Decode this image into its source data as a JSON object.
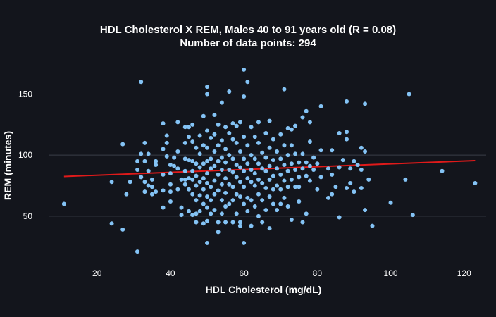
{
  "chart_data": {
    "type": "scatter",
    "title": "HDL Cholesterol X REM, Males 40 to 91 years old (R = 0.08)",
    "subtitle": "Number of data points: 294",
    "xlabel": "HDL Cholesterol (mg/dL)",
    "ylabel": "REM (minutes)",
    "xlim": [
      7,
      126
    ],
    "ylim": [
      17,
      178
    ],
    "xticks": [
      20,
      40,
      60,
      80,
      100,
      120
    ],
    "yticks": [
      50,
      100,
      150
    ],
    "grid": {
      "x": false,
      "y": true
    },
    "colors": {
      "background": "#13151c",
      "points": "#84c3f5",
      "trend": "#e01a1a",
      "grid": "#3a3d47",
      "text": "#ffffff"
    },
    "trendline": {
      "x": [
        11,
        123
      ],
      "y": [
        82.5,
        95.5
      ]
    },
    "series": [
      {
        "points": [
          [
            11,
            60
          ],
          [
            24,
            78
          ],
          [
            24,
            44
          ],
          [
            27,
            109
          ],
          [
            27,
            39
          ],
          [
            28,
            68
          ],
          [
            29,
            78
          ],
          [
            31,
            21
          ],
          [
            31,
            95
          ],
          [
            31,
            88
          ],
          [
            32,
            160
          ],
          [
            32,
            101
          ],
          [
            32,
            82
          ],
          [
            33,
            110
          ],
          [
            33,
            95
          ],
          [
            33,
            78
          ],
          [
            33,
            70
          ],
          [
            34,
            101
          ],
          [
            34,
            87
          ],
          [
            34,
            75
          ],
          [
            35,
            80
          ],
          [
            35,
            74
          ],
          [
            35,
            68
          ],
          [
            36,
            95
          ],
          [
            36,
            92
          ],
          [
            36,
            70
          ],
          [
            38,
            84
          ],
          [
            38,
            126
          ],
          [
            38,
            105
          ],
          [
            38,
            71
          ],
          [
            38,
            57
          ],
          [
            39,
            116
          ],
          [
            39,
            110
          ],
          [
            39,
            99
          ],
          [
            40,
            92
          ],
          [
            40,
            85
          ],
          [
            40,
            76
          ],
          [
            40,
            70
          ],
          [
            40,
            62
          ],
          [
            41,
            98
          ],
          [
            41,
            91
          ],
          [
            42,
            127
          ],
          [
            42,
            103
          ],
          [
            42,
            89
          ],
          [
            42,
            72
          ],
          [
            43,
            80
          ],
          [
            43,
            57
          ],
          [
            43,
            51
          ],
          [
            44,
            123
          ],
          [
            44,
            110
          ],
          [
            44,
            97
          ],
          [
            44,
            87
          ],
          [
            44,
            80
          ],
          [
            44,
            76
          ],
          [
            45,
            123
          ],
          [
            45,
            115
          ],
          [
            45,
            96
          ],
          [
            45,
            81
          ],
          [
            45,
            72
          ],
          [
            45,
            54
          ],
          [
            46,
            125
          ],
          [
            46,
            111
          ],
          [
            46,
            95
          ],
          [
            46,
            87
          ],
          [
            46,
            80
          ],
          [
            46,
            68
          ],
          [
            46,
            51
          ],
          [
            47,
            106
          ],
          [
            47,
            93
          ],
          [
            47,
            83
          ],
          [
            47,
            75
          ],
          [
            47,
            63
          ],
          [
            47,
            52
          ],
          [
            47,
            45
          ],
          [
            48,
            116
          ],
          [
            48,
            101
          ],
          [
            48,
            90
          ],
          [
            48,
            78
          ],
          [
            48,
            67
          ],
          [
            48,
            54
          ],
          [
            49,
            132
          ],
          [
            49,
            108
          ],
          [
            49,
            93
          ],
          [
            49,
            81
          ],
          [
            49,
            72
          ],
          [
            49,
            60
          ],
          [
            49,
            44
          ],
          [
            50,
            156
          ],
          [
            50,
            150
          ],
          [
            50,
            120
          ],
          [
            50,
            106
          ],
          [
            50,
            95
          ],
          [
            50,
            85
          ],
          [
            50,
            77
          ],
          [
            50,
            66
          ],
          [
            50,
            57
          ],
          [
            50,
            46
          ],
          [
            50,
            28
          ],
          [
            51,
            114
          ],
          [
            51,
            97
          ],
          [
            51,
            89
          ],
          [
            51,
            74
          ],
          [
            51,
            63
          ],
          [
            51,
            52
          ],
          [
            52,
            133
          ],
          [
            52,
            117
          ],
          [
            52,
            103
          ],
          [
            52,
            91
          ],
          [
            52,
            79
          ],
          [
            52,
            68
          ],
          [
            52,
            55
          ],
          [
            53,
            125
          ],
          [
            53,
            108
          ],
          [
            53,
            95
          ],
          [
            53,
            84
          ],
          [
            53,
            71
          ],
          [
            53,
            45
          ],
          [
            53,
            37
          ],
          [
            54,
            143
          ],
          [
            54,
            112
          ],
          [
            54,
            98
          ],
          [
            54,
            88
          ],
          [
            54,
            76
          ],
          [
            54,
            63
          ],
          [
            54,
            52
          ],
          [
            55,
            123
          ],
          [
            55,
            105
          ],
          [
            55,
            94
          ],
          [
            55,
            81
          ],
          [
            55,
            69
          ],
          [
            55,
            58
          ],
          [
            55,
            45
          ],
          [
            56,
            152
          ],
          [
            56,
            118
          ],
          [
            56,
            100
          ],
          [
            56,
            88
          ],
          [
            56,
            76
          ],
          [
            56,
            60
          ],
          [
            57,
            126
          ],
          [
            57,
            113
          ],
          [
            57,
            97
          ],
          [
            57,
            86
          ],
          [
            57,
            74
          ],
          [
            57,
            63
          ],
          [
            57,
            45
          ],
          [
            58,
            124
          ],
          [
            58,
            110
          ],
          [
            58,
            92
          ],
          [
            58,
            82
          ],
          [
            58,
            68
          ],
          [
            58,
            52
          ],
          [
            59,
            127
          ],
          [
            59,
            103
          ],
          [
            59,
            90
          ],
          [
            59,
            78
          ],
          [
            59,
            66
          ],
          [
            59,
            45
          ],
          [
            59,
            42
          ],
          [
            60,
            170
          ],
          [
            60,
            148
          ],
          [
            60,
            115
          ],
          [
            60,
            97
          ],
          [
            60,
            87
          ],
          [
            60,
            74
          ],
          [
            60,
            60
          ],
          [
            60,
            28
          ],
          [
            61,
            160
          ],
          [
            61,
            108
          ],
          [
            61,
            93
          ],
          [
            61,
            81
          ],
          [
            61,
            65
          ],
          [
            61,
            54
          ],
          [
            62,
            123
          ],
          [
            62,
            100
          ],
          [
            62,
            88
          ],
          [
            62,
            78
          ],
          [
            62,
            63
          ],
          [
            62,
            42
          ],
          [
            63,
            115
          ],
          [
            63,
            97
          ],
          [
            63,
            85
          ],
          [
            63,
            75
          ],
          [
            63,
            58
          ],
          [
            64,
            127
          ],
          [
            64,
            110
          ],
          [
            64,
            93
          ],
          [
            64,
            80
          ],
          [
            64,
            68
          ],
          [
            64,
            50
          ],
          [
            65,
            102
          ],
          [
            65,
            89
          ],
          [
            65,
            77
          ],
          [
            65,
            63
          ],
          [
            65,
            45
          ],
          [
            66,
            118
          ],
          [
            66,
            98
          ],
          [
            66,
            87
          ],
          [
            66,
            73
          ],
          [
            66,
            55
          ],
          [
            67,
            128
          ],
          [
            67,
            106
          ],
          [
            67,
            91
          ],
          [
            67,
            80
          ],
          [
            67,
            66
          ],
          [
            67,
            40
          ],
          [
            68,
            113
          ],
          [
            68,
            96
          ],
          [
            68,
            83
          ],
          [
            68,
            72
          ],
          [
            68,
            60
          ],
          [
            69,
            103
          ],
          [
            69,
            89
          ],
          [
            69,
            75
          ],
          [
            69,
            55
          ],
          [
            70,
            117
          ],
          [
            70,
            97
          ],
          [
            70,
            84
          ],
          [
            70,
            72
          ],
          [
            70,
            60
          ],
          [
            71,
            154
          ],
          [
            71,
            108
          ],
          [
            71,
            92
          ],
          [
            71,
            79
          ],
          [
            71,
            65
          ],
          [
            72,
            122
          ],
          [
            72,
            100
          ],
          [
            72,
            87
          ],
          [
            72,
            74
          ],
          [
            72,
            58
          ],
          [
            73,
            121
          ],
          [
            73,
            108
          ],
          [
            73,
            93
          ],
          [
            73,
            80
          ],
          [
            73,
            47
          ],
          [
            74,
            124
          ],
          [
            74,
            101
          ],
          [
            74,
            88
          ],
          [
            74,
            74
          ],
          [
            75,
            94
          ],
          [
            75,
            82
          ],
          [
            75,
            74
          ],
          [
            75,
            62
          ],
          [
            76,
            131
          ],
          [
            76,
            101
          ],
          [
            76,
            89
          ],
          [
            76,
            45
          ],
          [
            77,
            136
          ],
          [
            77,
            94
          ],
          [
            77,
            83
          ],
          [
            77,
            52
          ],
          [
            78,
            127
          ],
          [
            78,
            111
          ],
          [
            78,
            91
          ],
          [
            78,
            79
          ],
          [
            79,
            98
          ],
          [
            79,
            88
          ],
          [
            80,
            93
          ],
          [
            80,
            72
          ],
          [
            81,
            140
          ],
          [
            81,
            104
          ],
          [
            81,
            82
          ],
          [
            83,
            89
          ],
          [
            83,
            65
          ],
          [
            84,
            104
          ],
          [
            84,
            84
          ],
          [
            84,
            68
          ],
          [
            85,
            74
          ],
          [
            86,
            118
          ],
          [
            86,
            90
          ],
          [
            86,
            49
          ],
          [
            87,
            96
          ],
          [
            88,
            144
          ],
          [
            88,
            119
          ],
          [
            88,
            113
          ],
          [
            88,
            73
          ],
          [
            89,
            89
          ],
          [
            89,
            77
          ],
          [
            90,
            95
          ],
          [
            90,
            70
          ],
          [
            91,
            92
          ],
          [
            92,
            106
          ],
          [
            92,
            88
          ],
          [
            92,
            73
          ],
          [
            93,
            142
          ],
          [
            93,
            103
          ],
          [
            93,
            55
          ],
          [
            95,
            42
          ],
          [
            100,
            61
          ],
          [
            104,
            80
          ],
          [
            105,
            150
          ],
          [
            106,
            51
          ],
          [
            114,
            87
          ],
          [
            123,
            77
          ],
          [
            94,
            80
          ]
        ]
      }
    ]
  }
}
